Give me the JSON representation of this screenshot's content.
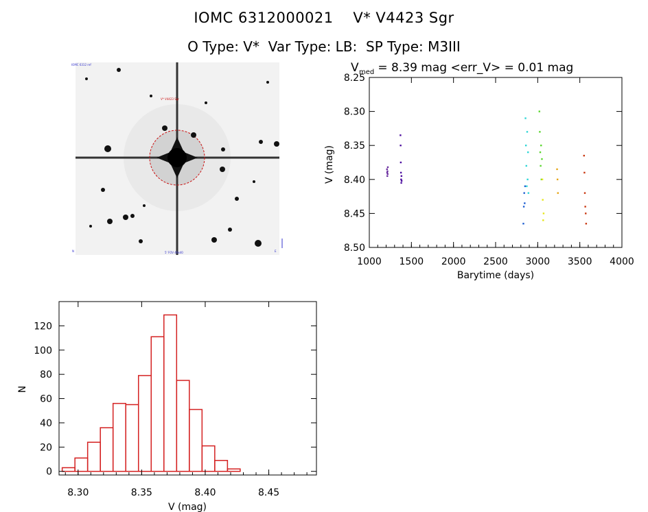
{
  "header": {
    "title_line1": "IOMC 6312000021    V* V4423 Sgr",
    "title_line2": "O Type: V*  Var Type: LB:  SP Type: M3III"
  },
  "image_panel": {
    "top_left_label": "IOMC 6312 ref",
    "marker_label": "V* V4423 Sgr",
    "bottom_label": "5' FOV  40x40",
    "corner_left": "N",
    "corner_right": "E"
  },
  "lightcurve": {
    "header_v": "V",
    "header_sub": "med",
    "header_rest": " = 8.39 mag <err_V> = 0.01 mag",
    "xlabel": "Barytime (days)",
    "ylabel": "V (mag)",
    "xticks": [
      "1000",
      "1500",
      "2000",
      "2500",
      "3000",
      "3500",
      "4000"
    ],
    "yticks": [
      "8.25",
      "8.30",
      "8.35",
      "8.40",
      "8.45",
      "8.50"
    ]
  },
  "histogram": {
    "xlabel": "V (mag)",
    "ylabel": "N",
    "xticks": [
      "8.30",
      "8.35",
      "8.40",
      "8.45"
    ],
    "yticks": [
      "0",
      "20",
      "40",
      "60",
      "80",
      "100",
      "120"
    ]
  },
  "colors": {
    "hist_bar": "#d42020",
    "reticle": "#cc1111",
    "lc_groups": [
      "#6b2fa0",
      "#4b0d9e",
      "#1f5fd1",
      "#2fd6d6",
      "#5bd62f",
      "#e6e61a",
      "#e6a514",
      "#c9360f"
    ]
  },
  "chart_data": [
    {
      "type": "scatter",
      "title": "V_med = 8.39 mag <err_V> = 0.01 mag",
      "xlabel": "Barytime (days)",
      "ylabel": "V (mag)",
      "xlim": [
        1000,
        4000
      ],
      "ylim": [
        8.5,
        8.25
      ],
      "y_inverted": true,
      "series": [
        {
          "color": "#6b2fa0",
          "x": [
            1210,
            1212,
            1214,
            1216,
            1218,
            1220
          ],
          "y": [
            8.385,
            8.39,
            8.395,
            8.388,
            8.392,
            8.382
          ]
        },
        {
          "color": "#4b0d9e",
          "x": [
            1370,
            1372,
            1374,
            1376,
            1378,
            1380,
            1382,
            1384
          ],
          "y": [
            8.335,
            8.35,
            8.375,
            8.39,
            8.4,
            8.405,
            8.395,
            8.402
          ]
        },
        {
          "color": "#1f5fd1",
          "x": [
            2830,
            2835,
            2840,
            2845,
            2850
          ],
          "y": [
            8.465,
            8.44,
            8.42,
            8.435,
            8.41
          ]
        },
        {
          "color": "#2fd6d6",
          "x": [
            2855,
            2860,
            2865,
            2870,
            2875,
            2880,
            2885,
            2890
          ],
          "y": [
            8.31,
            8.35,
            8.38,
            8.41,
            8.33,
            8.4,
            8.36,
            8.42
          ]
        },
        {
          "color": "#5bd62f",
          "x": [
            3020,
            3025,
            3030,
            3035,
            3040,
            3045,
            3050
          ],
          "y": [
            8.3,
            8.33,
            8.36,
            8.38,
            8.35,
            8.4,
            8.37
          ]
        },
        {
          "color": "#e6e61a",
          "x": [
            3055,
            3060,
            3065,
            3070
          ],
          "y": [
            8.4,
            8.43,
            8.46,
            8.45
          ]
        },
        {
          "color": "#e6a514",
          "x": [
            3230,
            3235,
            3240
          ],
          "y": [
            8.385,
            8.4,
            8.42
          ]
        },
        {
          "color": "#c9360f",
          "x": [
            3550,
            3555,
            3560,
            3565,
            3570,
            3575
          ],
          "y": [
            8.365,
            8.39,
            8.42,
            8.44,
            8.45,
            8.465
          ]
        }
      ]
    },
    {
      "type": "bar",
      "title": "",
      "xlabel": "V (mag)",
      "ylabel": "N",
      "ylim": [
        0,
        130
      ],
      "bin_width": 0.01,
      "bin_edges_start": 8.2875,
      "values": [
        3,
        11,
        24,
        36,
        56,
        55,
        79,
        111,
        129,
        75,
        51,
        21,
        9,
        2
      ]
    }
  ]
}
